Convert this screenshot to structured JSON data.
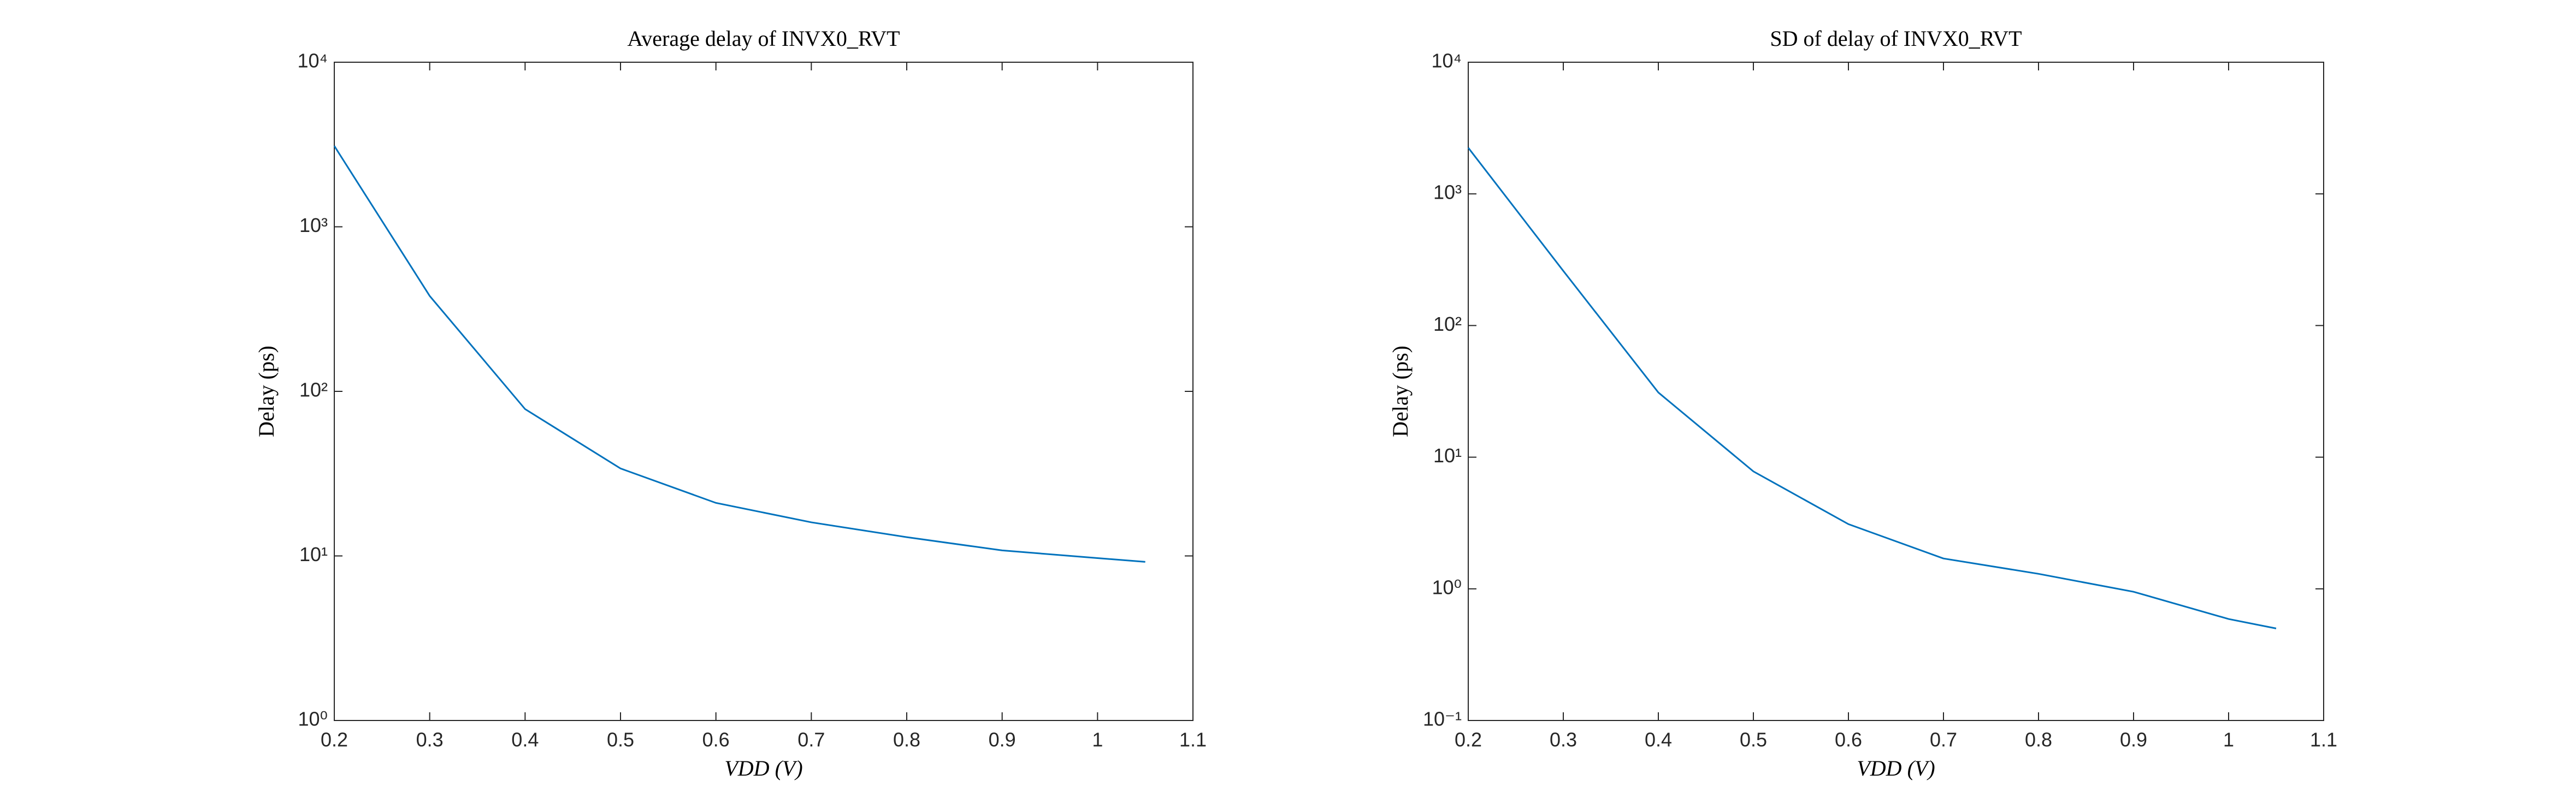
{
  "chart_data": [
    {
      "type": "line",
      "title": "Average delay of INVX0_RVT",
      "xlabel": "VDD (V)",
      "ylabel": "Delay (ps)",
      "x": [
        0.2,
        0.3,
        0.4,
        0.5,
        0.6,
        0.7,
        0.8,
        0.9,
        1.0,
        1.05
      ],
      "values": [
        3100,
        380,
        78,
        34,
        21,
        16,
        13,
        10.8,
        9.7,
        9.2
      ],
      "color": "#0072bd",
      "log_y": true,
      "xlim": [
        0.2,
        1.1
      ],
      "xticks": [
        0.2,
        0.3,
        0.4,
        0.5,
        0.6,
        0.7,
        0.8,
        0.9,
        1,
        1.1
      ],
      "ylim": [
        1,
        10000
      ],
      "yticks": [
        {
          "value": 1,
          "label": "10⁰"
        },
        {
          "value": 10,
          "label": "10¹"
        },
        {
          "value": 100,
          "label": "10²"
        },
        {
          "value": 1000,
          "label": "10³"
        },
        {
          "value": 10000,
          "label": "10⁴"
        }
      ]
    },
    {
      "type": "line",
      "title": "SD of delay of INVX0_RVT",
      "xlabel": "VDD (V)",
      "ylabel": "Delay (ps)",
      "x": [
        0.2,
        0.3,
        0.4,
        0.5,
        0.6,
        0.7,
        0.8,
        0.9,
        1.0,
        1.05
      ],
      "values": [
        2240,
        260,
        31,
        7.8,
        3.1,
        1.7,
        1.3,
        0.95,
        0.59,
        0.5
      ],
      "color": "#0072bd",
      "log_y": true,
      "xlim": [
        0.2,
        1.1
      ],
      "xticks": [
        0.2,
        0.3,
        0.4,
        0.5,
        0.6,
        0.7,
        0.8,
        0.9,
        1,
        1.1
      ],
      "ylim": [
        0.1,
        10000
      ],
      "yticks": [
        {
          "value": 0.1,
          "label": "10⁻¹"
        },
        {
          "value": 1,
          "label": "10⁰"
        },
        {
          "value": 10,
          "label": "10¹"
        },
        {
          "value": 100,
          "label": "10²"
        },
        {
          "value": 1000,
          "label": "10³"
        },
        {
          "value": 10000,
          "label": "10⁴"
        }
      ]
    }
  ]
}
